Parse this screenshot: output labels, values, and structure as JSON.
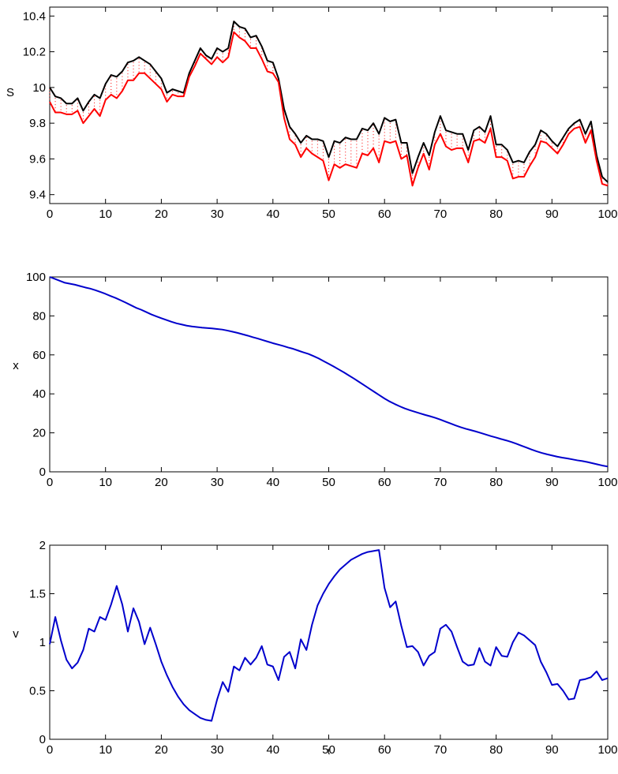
{
  "chart_data": [
    {
      "type": "line",
      "ylabel": "S",
      "xlabel": "",
      "xlim": [
        0,
        100
      ],
      "ylim": [
        9.35,
        10.45
      ],
      "xticks": [
        0,
        10,
        20,
        30,
        40,
        50,
        60,
        70,
        80,
        90,
        100
      ],
      "yticks": [
        9.4,
        9.6,
        9.8,
        10,
        10.2,
        10.4
      ],
      "ytick_labels": [
        "9.4",
        "9.6",
        "9.8",
        "10",
        "10.2",
        "10.4"
      ],
      "fill_between": {
        "color": "#ff0000",
        "style": "dotted"
      },
      "series": [
        {
          "color": "#000000",
          "values": [
            10.0,
            9.95,
            9.94,
            9.91,
            9.91,
            9.94,
            9.87,
            9.92,
            9.96,
            9.94,
            10.02,
            10.07,
            10.06,
            10.09,
            10.14,
            10.15,
            10.17,
            10.15,
            10.13,
            10.09,
            10.05,
            9.97,
            9.99,
            9.98,
            9.97,
            10.08,
            10.15,
            10.22,
            10.18,
            10.16,
            10.22,
            10.2,
            10.22,
            10.37,
            10.34,
            10.33,
            10.28,
            10.29,
            10.23,
            10.15,
            10.14,
            10.05,
            9.88,
            9.78,
            9.74,
            9.69,
            9.73,
            9.71,
            9.71,
            9.7,
            9.61,
            9.7,
            9.69,
            9.72,
            9.71,
            9.71,
            9.77,
            9.76,
            9.8,
            9.74,
            9.83,
            9.81,
            9.82,
            9.69,
            9.69,
            9.52,
            9.61,
            9.69,
            9.62,
            9.75,
            9.84,
            9.76,
            9.75,
            9.74,
            9.74,
            9.65,
            9.76,
            9.78,
            9.75,
            9.84,
            9.68,
            9.68,
            9.65,
            9.58,
            9.59,
            9.58,
            9.64,
            9.68,
            9.76,
            9.74,
            9.7,
            9.67,
            9.72,
            9.77,
            9.8,
            9.82,
            9.74,
            9.81,
            9.62,
            9.5,
            9.47
          ]
        },
        {
          "color": "#ff0000",
          "values": [
            9.92,
            9.86,
            9.86,
            9.85,
            9.85,
            9.87,
            9.8,
            9.84,
            9.88,
            9.84,
            9.93,
            9.96,
            9.94,
            9.98,
            10.04,
            10.04,
            10.08,
            10.08,
            10.05,
            10.02,
            9.99,
            9.92,
            9.96,
            9.95,
            9.95,
            10.06,
            10.12,
            10.19,
            10.16,
            10.13,
            10.17,
            10.14,
            10.17,
            10.31,
            10.28,
            10.26,
            10.22,
            10.22,
            10.16,
            10.09,
            10.08,
            10.03,
            9.83,
            9.71,
            9.68,
            9.61,
            9.66,
            9.63,
            9.61,
            9.59,
            9.48,
            9.57,
            9.55,
            9.57,
            9.56,
            9.55,
            9.63,
            9.62,
            9.66,
            9.58,
            9.7,
            9.69,
            9.7,
            9.6,
            9.62,
            9.45,
            9.55,
            9.63,
            9.54,
            9.68,
            9.74,
            9.67,
            9.65,
            9.66,
            9.66,
            9.58,
            9.7,
            9.71,
            9.69,
            9.77,
            9.61,
            9.61,
            9.59,
            9.49,
            9.5,
            9.5,
            9.56,
            9.61,
            9.7,
            9.69,
            9.66,
            9.63,
            9.68,
            9.74,
            9.77,
            9.78,
            9.69,
            9.76,
            9.59,
            9.46,
            9.45
          ]
        }
      ]
    },
    {
      "type": "line",
      "ylabel": "x",
      "xlabel": "",
      "xlim": [
        0,
        100
      ],
      "ylim": [
        0,
        100
      ],
      "xticks": [
        0,
        10,
        20,
        30,
        40,
        50,
        60,
        70,
        80,
        90,
        100
      ],
      "yticks": [
        0,
        20,
        40,
        60,
        80,
        100
      ],
      "ytick_labels": [
        "0",
        "20",
        "40",
        "60",
        "80",
        "100"
      ],
      "series": [
        {
          "color": "#0000cc",
          "values": [
            100,
            99,
            98,
            97,
            96.5,
            96,
            95.3,
            94.6,
            94,
            93.2,
            92.3,
            91.3,
            90.2,
            89.2,
            88,
            86.8,
            85.5,
            84.2,
            83.2,
            82,
            80.8,
            79.8,
            78.8,
            77.9,
            77,
            76.2,
            75.6,
            75,
            74.6,
            74.3,
            74,
            73.8,
            73.6,
            73.3,
            73,
            72.5,
            71.9,
            71.3,
            70.6,
            69.9,
            69.1,
            68.4,
            67.6,
            66.8,
            66,
            65.3,
            64.6,
            63.8,
            63.1,
            62.2,
            61.3,
            60.5,
            59.4,
            58.2,
            56.8,
            55.4,
            54,
            52.5,
            51,
            49.4,
            47.8,
            46.1,
            44.4,
            42.7,
            41,
            39.3,
            37.6,
            36.1,
            34.8,
            33.6,
            32.5,
            31.6,
            30.8,
            30,
            29.2,
            28.5,
            27.7,
            26.8,
            25.8,
            24.8,
            23.8,
            22.9,
            22.1,
            21.4,
            20.7,
            19.9,
            19.1,
            18.3,
            17.6,
            16.8,
            16.1,
            15.3,
            14.4,
            13.4,
            12.4,
            11.4,
            10.5,
            9.7,
            9.0,
            8.4,
            7.8,
            7.3,
            6.9,
            6.4,
            5.9,
            5.5,
            5.0,
            4.4,
            3.8,
            3.2,
            2.7
          ]
        }
      ]
    },
    {
      "type": "line",
      "ylabel": "v",
      "xlabel": "t",
      "xlim": [
        0,
        100
      ],
      "ylim": [
        0,
        2
      ],
      "xticks": [
        0,
        10,
        20,
        30,
        40,
        50,
        60,
        70,
        80,
        90,
        100
      ],
      "yticks": [
        0,
        0.5,
        1,
        1.5,
        2
      ],
      "ytick_labels": [
        "0",
        "0.5",
        "1",
        "1.5",
        "2"
      ],
      "series": [
        {
          "color": "#0000cc",
          "values": [
            0.98,
            1.26,
            1.02,
            0.82,
            0.73,
            0.79,
            0.92,
            1.14,
            1.11,
            1.26,
            1.23,
            1.39,
            1.58,
            1.39,
            1.11,
            1.35,
            1.21,
            0.98,
            1.15,
            0.98,
            0.8,
            0.66,
            0.54,
            0.44,
            0.36,
            0.3,
            0.26,
            0.22,
            0.2,
            0.19,
            0.41,
            0.59,
            0.49,
            0.75,
            0.71,
            0.84,
            0.77,
            0.84,
            0.96,
            0.77,
            0.75,
            0.61,
            0.85,
            0.9,
            0.73,
            1.03,
            0.92,
            1.18,
            1.38,
            1.5,
            1.6,
            1.68,
            1.75,
            1.8,
            1.85,
            1.88,
            1.91,
            1.93,
            1.94,
            1.95,
            1.56,
            1.36,
            1.42,
            1.17,
            0.95,
            0.96,
            0.9,
            0.76,
            0.86,
            0.9,
            1.14,
            1.18,
            1.11,
            0.95,
            0.8,
            0.76,
            0.77,
            0.94,
            0.8,
            0.76,
            0.95,
            0.86,
            0.85,
            1.0,
            1.1,
            1.07,
            1.02,
            0.97,
            0.8,
            0.69,
            0.56,
            0.57,
            0.5,
            0.41,
            0.42,
            0.61,
            0.62,
            0.64,
            0.7,
            0.61,
            0.63
          ]
        }
      ]
    }
  ]
}
